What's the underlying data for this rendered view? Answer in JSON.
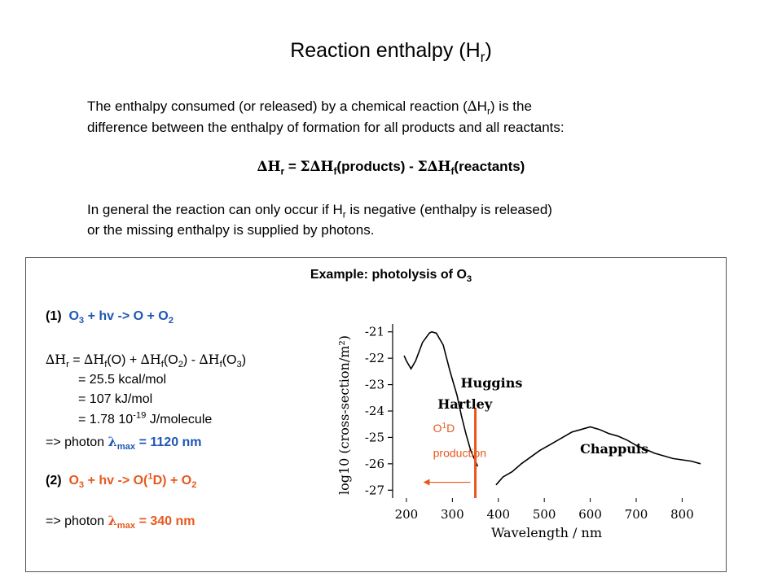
{
  "title": {
    "main": "Reaction enthalpy (H",
    "sub": "r",
    "close": ")"
  },
  "intro": {
    "l1a": "The enthalpy consumed (or released) by a chemical reaction (",
    "l1delta": "∆",
    "l1b": "H",
    "l1sub": "r",
    "l1c": ") is the",
    "l2": "difference between the enthalpy of formation for all products and all reactants:"
  },
  "formula": {
    "a": "∆H",
    "asub": "r",
    "b": " = ",
    "c": "Σ∆H",
    "csub": "f",
    "d": "(products) - ",
    "e": "Σ∆H",
    "esub": "f",
    "f": "(reactants)"
  },
  "general": {
    "l1a": "In general the reaction can only occur if H",
    "l1sub": "r",
    "l1b": " is negative (enthalpy is released)",
    "l2": "or the missing enthalpy is supplied by photons."
  },
  "example": {
    "title": "Example: photolysis of O",
    "title_sub": "3",
    "r1_num": "(1)",
    "r1_eq_a": "O",
    "r1_eq_asub": "3",
    "r1_eq_b": " + hv -> O + O",
    "r1_eq_bsub": "2",
    "dh_a": "∆H",
    "dh_asub": "r",
    "dh_b": " = ",
    "dh_c": "∆H",
    "dh_csub": "f",
    "dh_d": "(O) + ",
    "dh_e": "∆H",
    "dh_esub": "f",
    "dh_f": "(O",
    "dh_fsub": "2",
    "dh_g": ") - ",
    "dh_h": "∆H",
    "dh_hsub": "f",
    "dh_i": "(O",
    "dh_isub": "3",
    "dh_j": ")",
    "v1": "= 25.5 kcal/mol",
    "v2": "= 107 kJ/mol",
    "v3a": "= 1.78 10",
    "v3sup": "-19",
    "v3b": " J/molecule",
    "p1a": "=> photon ",
    "p1lambda": "λ",
    "p1sub": "max",
    "p1b": " = 1120 nm",
    "r2_num": "(2)",
    "r2_a": "O",
    "r2_asub": "3",
    "r2_b": " + hv -> O(",
    "r2_sup": "1",
    "r2_c": "D) + O",
    "r2_csub": "2",
    "p2a": "=> photon ",
    "p2lambda": "λ",
    "p2sub": "max",
    "p2b": " = 340 nm"
  },
  "chart_data": {
    "type": "line",
    "xlabel": "Wavelength / nm",
    "ylabel": "log10 (cross-section/m²)",
    "xticks": [
      200,
      300,
      400,
      500,
      600,
      700,
      800
    ],
    "yticks": [
      -21,
      -22,
      -23,
      -24,
      -25,
      -26,
      -27
    ],
    "xlim": [
      170,
      840
    ],
    "ylim": [
      -27.3,
      -20.7
    ],
    "band_labels": [
      "Hartley",
      "Huggins",
      "Chappuis"
    ],
    "annotation": {
      "line1": "O",
      "sup": "1",
      "line2": "D",
      "line3": "production",
      "x": 350
    },
    "series": [
      {
        "x": [
          195,
          200,
          210,
          220,
          235,
          250,
          255,
          265,
          280,
          295,
          310,
          320,
          330,
          340,
          350,
          355
        ],
        "y": [
          -21.9,
          -22.1,
          -22.4,
          -22.1,
          -21.4,
          -21.05,
          -21.0,
          -21.05,
          -21.5,
          -22.5,
          -23.4,
          -24.2,
          -24.9,
          -25.5,
          -25.9,
          -26.1
        ]
      },
      {
        "x": [
          395,
          410,
          430,
          450,
          470,
          490,
          510,
          540,
          560,
          580,
          600,
          620,
          640,
          660,
          680,
          700,
          720,
          740,
          760,
          780,
          800,
          820,
          840
        ],
        "y": [
          -26.8,
          -26.5,
          -26.3,
          -26.0,
          -25.75,
          -25.5,
          -25.3,
          -25.0,
          -24.8,
          -24.7,
          -24.6,
          -24.7,
          -24.85,
          -24.95,
          -25.1,
          -25.3,
          -25.45,
          -25.6,
          -25.7,
          -25.8,
          -25.85,
          -25.9,
          -26.0
        ]
      }
    ]
  }
}
